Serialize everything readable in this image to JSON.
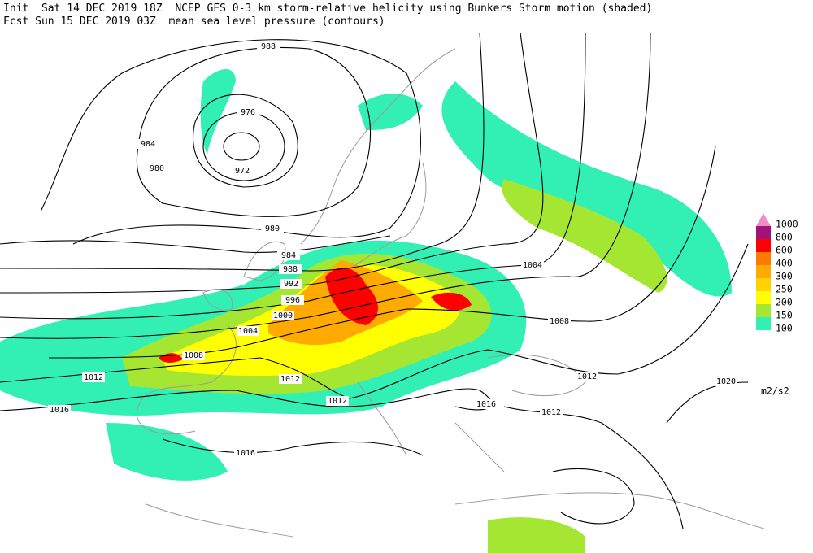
{
  "header": {
    "line1": "Init  Sat 14 DEC 2019 18Z  NCEP GFS 0-3 km storm-relative helicity using Bunkers Storm motion (shaded)",
    "line2": "Fcst Sun 15 DEC 2019 03Z  mean sea level pressure (contours)"
  },
  "legend": {
    "unit": "m2/s2",
    "levels": [
      {
        "label": "1000",
        "color": "#f08cc8"
      },
      {
        "label": "800",
        "color": "#a0147a"
      },
      {
        "label": "600",
        "color": "#ff0000"
      },
      {
        "label": "400",
        "color": "#ff7a00"
      },
      {
        "label": "300",
        "color": "#ffaa00"
      },
      {
        "label": "250",
        "color": "#ffd200"
      },
      {
        "label": "200",
        "color": "#ffff00"
      },
      {
        "label": "150",
        "color": "#a5e632"
      },
      {
        "label": "100",
        "color": "#32f0b4"
      }
    ]
  },
  "contour_labels": [
    "988",
    "976",
    "984",
    "980",
    "972",
    "980",
    "984",
    "988",
    "992",
    "996",
    "1000",
    "1004",
    "1008",
    "1012",
    "1012",
    "1012",
    "1016",
    "1016",
    "1004",
    "1008",
    "1012",
    "1016",
    "1012",
    "1020"
  ]
}
